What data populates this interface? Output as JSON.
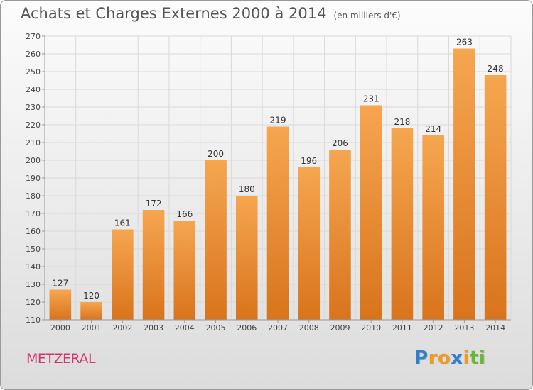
{
  "header": {
    "title": "Achats et Charges Externes 2000 à 2014",
    "unit": "(en milliers d'€)"
  },
  "footer": {
    "place": "METZERAL",
    "logo_letters": [
      "P",
      "r",
      "o",
      "x",
      "i",
      "t",
      "i"
    ],
    "logo_colors": [
      "#2f7fd0",
      "#f29a1e",
      "#f29a1e",
      "#2f7fd0",
      "#f29a1e",
      "#6bb82e",
      "#6bb82e"
    ]
  },
  "colors": {
    "bar_light": "#f6a650",
    "bar_dark": "#d8741c",
    "grid": "#d9d9d9",
    "axis": "#999999"
  },
  "chart_data": {
    "type": "bar",
    "title": "Achats et Charges Externes 2000 à 2014",
    "subtitle": "(en milliers d'€)",
    "categories": [
      "2000",
      "2001",
      "2002",
      "2003",
      "2004",
      "2005",
      "2006",
      "2007",
      "2008",
      "2009",
      "2010",
      "2011",
      "2012",
      "2013",
      "2014"
    ],
    "values": [
      127,
      120,
      161,
      172,
      166,
      200,
      180,
      219,
      196,
      206,
      231,
      218,
      214,
      263,
      248
    ],
    "ylim": [
      110,
      270
    ],
    "ytick_step": 10,
    "grid": true,
    "xlabel": "",
    "ylabel": ""
  }
}
